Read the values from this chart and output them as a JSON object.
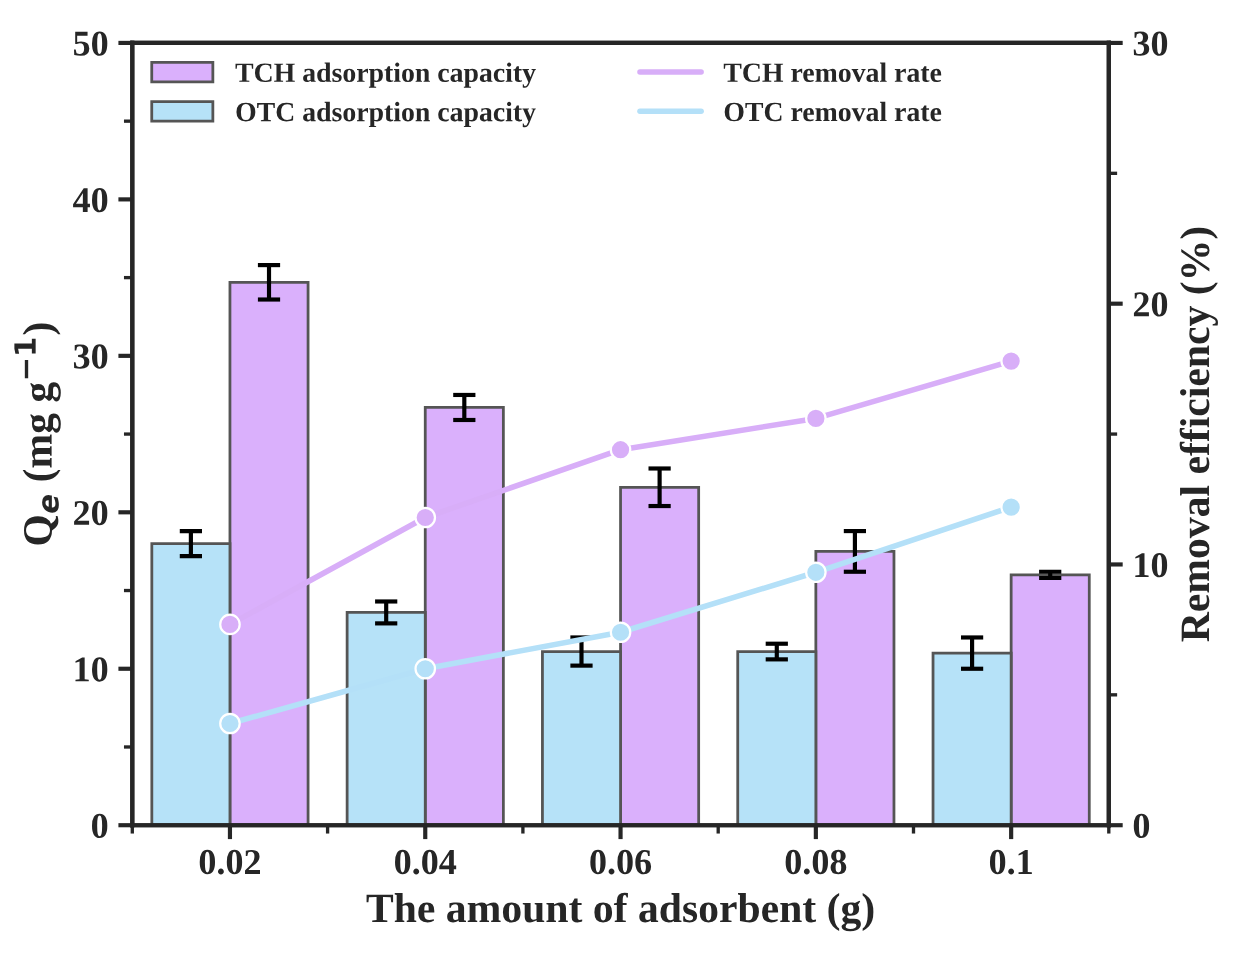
{
  "chart_data": {
    "type": "bar",
    "xlabel": "The amount of adsorbent (g)",
    "ylabel": "Q$_{e}$ (mg g$^{−1}$)",
    "y2label": "Removal efficiency (%)",
    "categories": [
      "0.02",
      "0.04",
      "0.06",
      "0.08",
      "0.1"
    ],
    "series": [
      {
        "name": "TCH adsorption capacity",
        "color": "#dab0fc",
        "values": [
          34.7,
          26.7,
          21.6,
          17.5,
          16.0
        ],
        "errors": [
          1.1,
          0.8,
          1.2,
          1.3,
          0.2
        ]
      },
      {
        "name": "OTC adsorption capacity",
        "color": "#b6e2f8",
        "values": [
          18.0,
          13.6,
          11.1,
          11.1,
          11.0
        ],
        "errors": [
          0.8,
          0.7,
          0.9,
          0.5,
          1.0
        ]
      },
      {
        "name": "TCH removal rate",
        "type": "line",
        "axis": "y2",
        "color": "#d8aef8",
        "values": [
          7.7,
          11.8,
          14.4,
          15.6,
          17.8
        ]
      },
      {
        "name": "OTC removal rate",
        "type": "line",
        "axis": "y2",
        "color": "#b4e0f8",
        "values": [
          3.9,
          6.0,
          7.4,
          9.7,
          12.2
        ]
      }
    ],
    "ylim": [
      0,
      50
    ],
    "yticks": [
      0,
      10,
      20,
      30,
      40,
      50
    ],
    "y2lim": [
      0,
      30
    ],
    "y2ticks": [
      0,
      10,
      20,
      30
    ],
    "marker": "circle",
    "legend": "top",
    "grid": false
  }
}
